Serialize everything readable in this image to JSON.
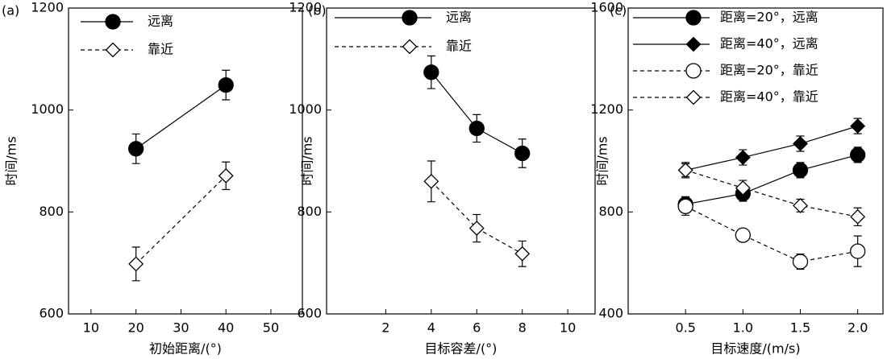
{
  "chart_data": [
    {
      "type": "line",
      "title": "(a)",
      "x_label": "初始距离/(°)",
      "y_label": "时间/ms",
      "x": [
        20,
        40
      ],
      "xlim": [
        5,
        57
      ],
      "xticks": [
        10,
        20,
        30,
        40,
        50
      ],
      "ylim": [
        600,
        1200
      ],
      "yticks": [
        600,
        800,
        1000,
        1200
      ],
      "series": [
        {
          "name": "远离",
          "color": "#000000",
          "marker": "circle",
          "filled": true,
          "dashed": false,
          "values": [
            924,
            1049
          ],
          "errors": [
            29,
            29
          ]
        },
        {
          "name": "靠近",
          "color": "#000000",
          "marker": "diamond",
          "filled": false,
          "dashed": true,
          "values": [
            698,
            871
          ],
          "errors": [
            33,
            27
          ]
        }
      ]
    },
    {
      "type": "line",
      "title": "(b)",
      "x_label": "目标容差/(°)",
      "y_label": "时间/ms",
      "x": [
        4,
        6,
        8
      ],
      "xlim": [
        -0.6,
        11.2
      ],
      "xticks": [
        2,
        4,
        6,
        8,
        10
      ],
      "ylim": [
        600,
        1200
      ],
      "yticks": [
        600,
        800,
        1000,
        1200
      ],
      "series": [
        {
          "name": "远离",
          "color": "#000000",
          "marker": "circle",
          "filled": true,
          "dashed": false,
          "values": [
            1074,
            964,
            915
          ],
          "errors": [
            32,
            27,
            28
          ]
        },
        {
          "name": "靠近",
          "color": "#000000",
          "marker": "diamond",
          "filled": false,
          "dashed": true,
          "values": [
            860,
            768,
            718
          ],
          "errors": [
            40,
            27,
            25
          ]
        }
      ]
    },
    {
      "type": "line",
      "title": "(c)",
      "x_label": "目标速度/(m/s)",
      "y_label": "时间/ms",
      "x": [
        0.5,
        1,
        1.5,
        2
      ],
      "xlim": [
        0,
        2.22
      ],
      "xticks": [
        0.5,
        {
          "value": 1,
          "label": "1.0"
        },
        1.5,
        {
          "value": 2,
          "label": "2.0"
        }
      ],
      "ylim": [
        400,
        1600
      ],
      "yticks": [
        400,
        800,
        1200,
        1600
      ],
      "series": [
        {
          "name": "距离=20°，远离",
          "color": "#000000",
          "marker": "circle",
          "filled": true,
          "dashed": false,
          "values": [
            830,
            872,
            964,
            1024
          ],
          "errors": [
            30,
            30,
            30,
            30
          ]
        },
        {
          "name": "距离=40°，远离",
          "color": "#000000",
          "marker": "diamond",
          "filled": true,
          "dashed": false,
          "values": [
            964,
            1014,
            1068,
            1137
          ],
          "errors": [
            30,
            30,
            30,
            30
          ]
        },
        {
          "name": "距离=20°，靠近",
          "color": "#000000",
          "marker": "circle",
          "filled": false,
          "dashed": true,
          "values": [
            822,
            709,
            605,
            646
          ],
          "errors": [
            35,
            25,
            30,
            60
          ]
        },
        {
          "name": "距离=40°，靠近",
          "color": "#000000",
          "marker": "diamond",
          "filled": false,
          "dashed": true,
          "values": [
            964,
            894,
            825,
            781
          ],
          "errors": [
            25,
            30,
            25,
            35
          ]
        }
      ]
    }
  ]
}
